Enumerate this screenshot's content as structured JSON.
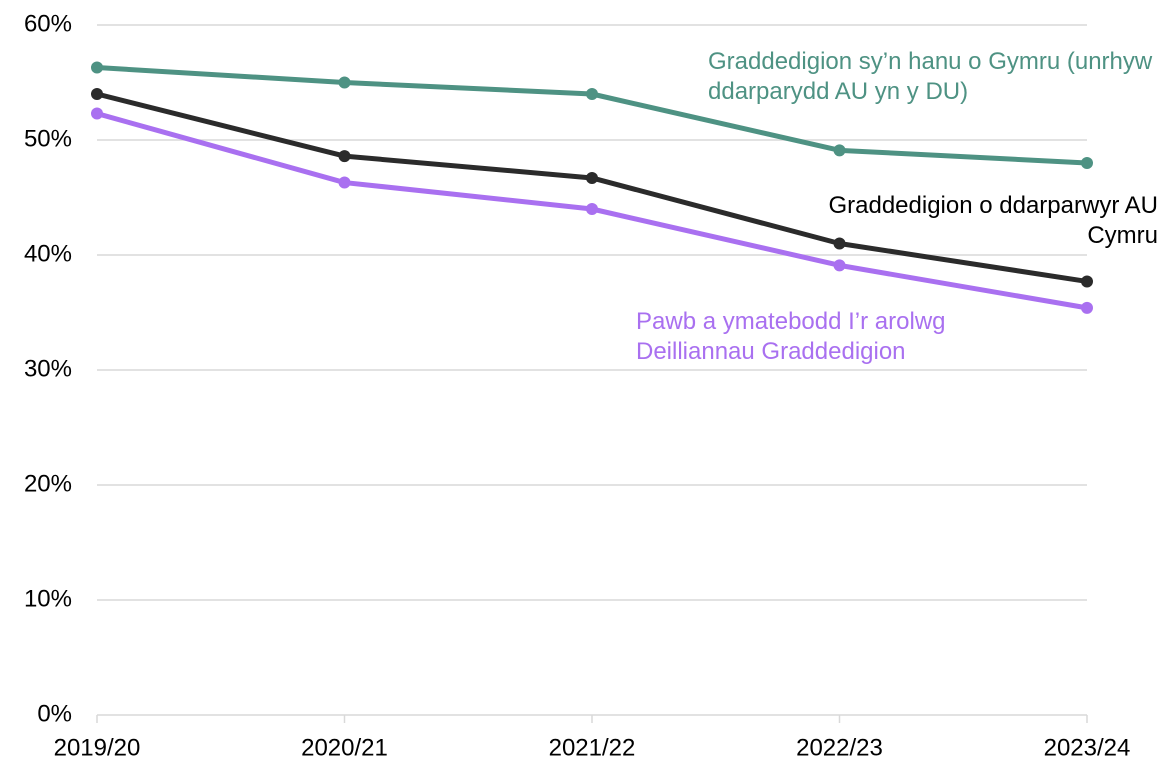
{
  "chart_data": {
    "type": "line",
    "categories": [
      "2019/20",
      "2020/21",
      "2021/22",
      "2022/23",
      "2023/24"
    ],
    "series": [
      {
        "name": "Graddedigion sy’n hanu o Gymru (unrhyw ddarparydd AU yn y DU)",
        "color": "#4e9283",
        "values": [
          56.3,
          55.0,
          54.0,
          49.1,
          48.0
        ]
      },
      {
        "name": "Graddedigion o ddarparwyr AU Cymru",
        "color": "#2b2b2b",
        "values": [
          54.0,
          48.6,
          46.7,
          41.0,
          37.7
        ]
      },
      {
        "name": "Pawb a ymatebodd I’r arolwg Deilliannau Graddedigion",
        "color": "#a970f0",
        "values": [
          52.3,
          46.3,
          44.0,
          39.1,
          35.4
        ]
      }
    ],
    "ylim": [
      0,
      60
    ],
    "yticks": [
      {
        "value": 0,
        "label": "0%"
      },
      {
        "value": 10,
        "label": "10%"
      },
      {
        "value": 20,
        "label": "20%"
      },
      {
        "value": 30,
        "label": "30%"
      },
      {
        "value": 40,
        "label": "40%"
      },
      {
        "value": 50,
        "label": "50%"
      },
      {
        "value": 60,
        "label": "60%"
      }
    ],
    "grid": true
  }
}
